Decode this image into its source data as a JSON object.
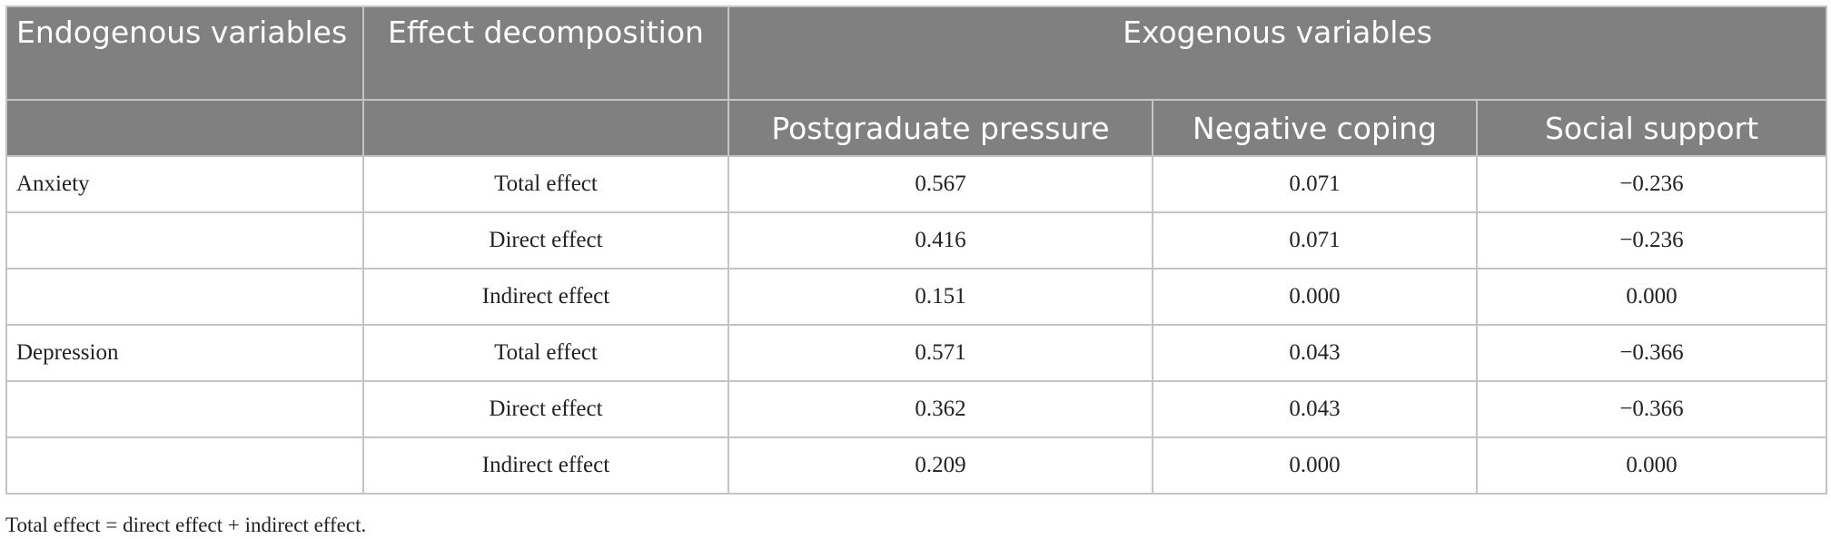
{
  "table": {
    "header": {
      "endogenous": "Endogenous variables",
      "effect": "Effect decomposition",
      "exogenous": "Exogenous variables",
      "columns": [
        "Postgraduate pressure",
        "Negative coping",
        "Social support"
      ]
    },
    "groups": [
      {
        "label": "Anxiety",
        "rows": [
          {
            "effect": "Total effect",
            "values": [
              "0.567",
              "0.071",
              "−0.236"
            ]
          },
          {
            "effect": "Direct effect",
            "values": [
              "0.416",
              "0.071",
              "−0.236"
            ]
          },
          {
            "effect": "Indirect effect",
            "values": [
              "0.151",
              "0.000",
              "0.000"
            ]
          }
        ]
      },
      {
        "label": "Depression",
        "rows": [
          {
            "effect": "Total effect",
            "values": [
              "0.571",
              "0.043",
              "−0.366"
            ]
          },
          {
            "effect": "Direct effect",
            "values": [
              "0.362",
              "0.043",
              "−0.366"
            ]
          },
          {
            "effect": "Indirect effect",
            "values": [
              "0.209",
              "0.000",
              "0.000"
            ]
          }
        ]
      }
    ],
    "footnote": "Total effect = direct effect + indirect effect."
  }
}
